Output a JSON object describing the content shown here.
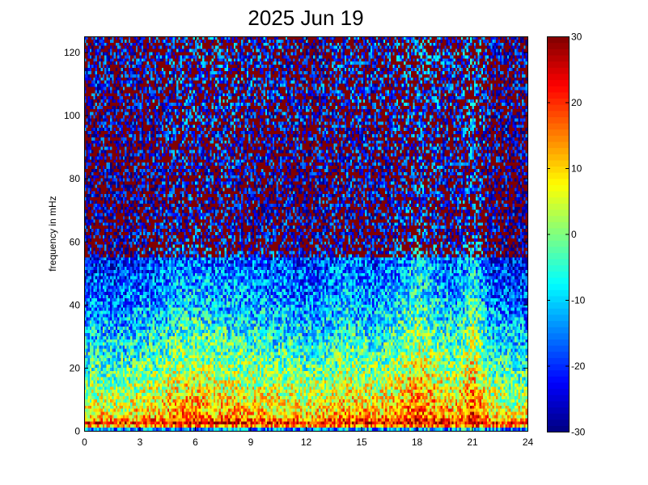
{
  "chart_data": {
    "type": "heatmap",
    "title": "2025 Jun 19",
    "xlabel": "",
    "ylabel": "frequency in mHz",
    "xlim": [
      0,
      24
    ],
    "ylim": [
      0,
      125
    ],
    "x_ticks": [
      0,
      3,
      6,
      9,
      12,
      15,
      18,
      21,
      24
    ],
    "y_ticks": [
      0,
      20,
      40,
      60,
      80,
      100,
      120
    ],
    "colorbar": {
      "min": -30,
      "max": 30,
      "ticks": [
        30,
        20,
        10,
        0,
        -10,
        -20,
        -30
      ],
      "colormap": "jet"
    },
    "grid": false,
    "colors": {
      "saturated_high": "#800000",
      "saturated_low": "#000080",
      "background": "#ffffff"
    },
    "grid_shape": {
      "time_bins": 240,
      "freq_bins": 125
    },
    "baseline": {
      "description": "median dB level vs frequency (mHz), read from color",
      "freq": [
        0,
        2,
        4,
        8,
        12,
        16,
        20,
        25,
        30,
        35,
        40,
        45,
        50,
        55,
        60,
        70,
        80,
        90,
        100,
        125
      ],
      "level": [
        -28,
        25,
        8,
        4,
        1,
        -2,
        -5,
        -8,
        -11,
        -14,
        -17,
        -19,
        -21,
        -23,
        -24,
        -25,
        -25,
        -24,
        -23,
        -22
      ]
    },
    "activity": {
      "description": "relative intensity boost vs hour (dB)",
      "hour": [
        0,
        1,
        2,
        3,
        4,
        5,
        6,
        7,
        8,
        9,
        10,
        11,
        12,
        13,
        14,
        15,
        16,
        17,
        18,
        19,
        20,
        20.8,
        21,
        22,
        23,
        24
      ],
      "boost": [
        0,
        2,
        0,
        3,
        4,
        7,
        8,
        6,
        6,
        5,
        4,
        4,
        2,
        3,
        6,
        5,
        4,
        7,
        12,
        8,
        5,
        10,
        14,
        2,
        0,
        0
      ]
    }
  }
}
